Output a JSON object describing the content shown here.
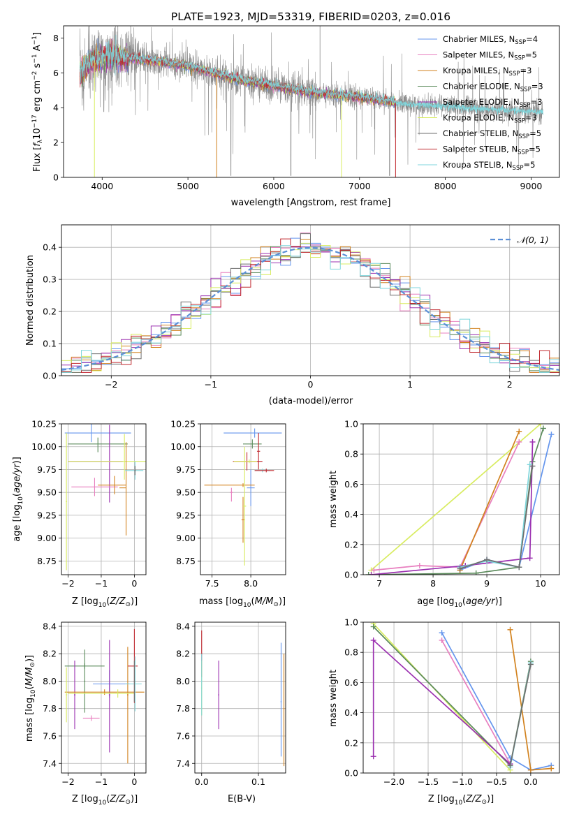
{
  "title": "PLATE=1923, MJD=53319, FIBERID=0203, z=0.016",
  "legend_models": [
    {
      "label": "Chabrier MILES, N",
      "sub": "SSP",
      "suffix": "=4",
      "color": "#6495ed"
    },
    {
      "label": "Salpeter MILES, N",
      "sub": "SSP",
      "suffix": "=5",
      "color": "#e87fbf"
    },
    {
      "label": "Kroupa MILES, N",
      "sub": "SSP",
      "suffix": "=3",
      "color": "#d2821e"
    },
    {
      "label": "Chabrier ELODIE, N",
      "sub": "SSP",
      "suffix": "=3",
      "color": "#5a8a5a"
    },
    {
      "label": "Salpeter ELODIE, N",
      "sub": "SSP",
      "suffix": "=3",
      "color": "#9b30b0"
    },
    {
      "label": "Kroupa ELODIE, N",
      "sub": "SSP",
      "suffix": "=3",
      "color": "#d8ec60"
    },
    {
      "label": "Chabrier STELIB, N",
      "sub": "SSP",
      "suffix": "=5",
      "color": "#6e6e6e"
    },
    {
      "label": "Salpeter STELIB, N",
      "sub": "SSP",
      "suffix": "=5",
      "color": "#c0282e"
    },
    {
      "label": "Kroupa STELIB, N",
      "sub": "SSP",
      "suffix": "=5",
      "color": "#7fd6dc"
    }
  ],
  "normal_label": "𝒩(0, 1)",
  "chart_data": [
    {
      "id": "spectrum",
      "type": "line",
      "xlabel": "wavelength [Angstrom, rest frame]",
      "ylabel": "Flux [f_λ 10^-17 erg cm^-2 s^-1 A^-1]",
      "xlim": [
        3550,
        9330
      ],
      "ylim": [
        0,
        8.7
      ],
      "xticks": [
        4000,
        5000,
        6000,
        7000,
        8000,
        9000
      ],
      "yticks": [
        0,
        2,
        4,
        6,
        8
      ],
      "data_color": "#8c8c8c",
      "continuum": {
        "x": [
          3750,
          3850,
          4000,
          4200,
          4500,
          4800,
          5000,
          5300,
          5600,
          6000,
          6300,
          6600,
          7000,
          7300,
          7450,
          7600,
          8000,
          8400,
          8800,
          9000
        ],
        "y": [
          6.0,
          6.6,
          6.9,
          6.9,
          6.75,
          6.55,
          6.4,
          6.0,
          5.6,
          5.25,
          5.0,
          4.8,
          4.6,
          4.4,
          4.25,
          4.2,
          4.1,
          3.95,
          3.85,
          3.75
        ]
      },
      "model_xrange": [
        3740,
        7420
      ],
      "data_xrange": [
        3740,
        9140
      ]
    },
    {
      "id": "residuals",
      "type": "histogram",
      "xlabel": "(data-model)/error",
      "ylabel": "Normed distribution",
      "xlim": [
        -2.5,
        2.5
      ],
      "ylim": [
        0,
        0.47
      ],
      "xticks": [
        -2,
        -1,
        0,
        1,
        2
      ],
      "yticks": [
        0.0,
        0.1,
        0.2,
        0.3,
        0.4
      ],
      "bin_width": 0.1,
      "gaussian": {
        "mu": 0,
        "sigma": 1,
        "color": "#5b8fd6"
      }
    },
    {
      "id": "age_vs_Z",
      "type": "errorbar",
      "xlabel": "Z [log10(Z/Z⊙)]",
      "ylabel": "age  [log10(age/yr)]",
      "xlim": [
        -2.2,
        0.35
      ],
      "ylim": [
        8.6,
        10.25
      ],
      "xticks": [
        -2,
        -1,
        0
      ],
      "yticks": [
        8.75,
        9.0,
        9.25,
        9.5,
        9.75,
        10.0,
        10.25
      ],
      "points": [
        {
          "x": -1.3,
          "xerr": [
            0.8,
            1.2
          ],
          "y": 10.15,
          "yerr": [
            0.1,
            0.1
          ],
          "c": "#6495ed"
        },
        {
          "x": -1.1,
          "xerr": [
            0.9,
            0.9
          ],
          "y": 10.03,
          "yerr": [
            0.09,
            0.07
          ],
          "c": "#5a8a5a"
        },
        {
          "x": -0.75,
          "xerr": [
            1.25,
            0.4
          ],
          "y": 9.84,
          "yerr": [
            0.45,
            0.4
          ],
          "c": "#9b30b0"
        },
        {
          "x": -1.2,
          "xerr": [
            0.7,
            0.7
          ],
          "y": 9.56,
          "yerr": [
            0.1,
            0.1
          ],
          "c": "#e87fbf"
        },
        {
          "x": -0.6,
          "xerr": [
            0.5,
            0.35
          ],
          "y": 9.58,
          "yerr": [
            0.1,
            0.1
          ],
          "c": "#d2821e"
        },
        {
          "x": -0.3,
          "xerr": [
            1.7,
            0.7
          ],
          "y": 9.84,
          "yerr": [
            0.2,
            0.3
          ],
          "c": "#d8ec60"
        },
        {
          "x": -0.25,
          "xerr": [
            0.2,
            0.0
          ],
          "y": 9.55,
          "yerr": [
            0.52,
            0.5
          ],
          "c": "#d2821e"
        },
        {
          "x": 0.02,
          "xerr": [
            0.3,
            0.25
          ],
          "y": 9.74,
          "yerr": [
            0.1,
            0.1
          ],
          "c": "#7fd6dc"
        },
        {
          "x": 0.02,
          "xerr": [
            0.02,
            0.02
          ],
          "y": 9.74,
          "yerr": [
            0.05,
            0.05
          ],
          "c": "#6e6e6e"
        },
        {
          "x": -2.05,
          "xerr": [
            0.02,
            0.02
          ],
          "y": 9.4,
          "yerr": [
            0.75,
            0.75
          ],
          "c": "#d8ec60"
        }
      ]
    },
    {
      "id": "age_vs_mass",
      "type": "errorbar",
      "xlabel": "mass [log10(M/M⊙)]",
      "ylabel": "",
      "xlim": [
        7.35,
        8.45
      ],
      "ylim": [
        8.6,
        10.25
      ],
      "xticks": [
        7.5,
        8.0
      ],
      "yticks": [
        8.75,
        9.0,
        9.25,
        9.5,
        9.75,
        10.0,
        10.25
      ],
      "points": [
        {
          "x": 8.05,
          "xerr": [
            0.4,
            0.35
          ],
          "y": 10.15,
          "yerr": [
            0.05,
            0.05
          ],
          "c": "#6495ed"
        },
        {
          "x": 8.0,
          "xerr": [
            0.05,
            0.05
          ],
          "y": 9.55,
          "yerr": [
            0.2,
            0.2
          ],
          "c": "#6495ed"
        },
        {
          "x": 8.02,
          "xerr": [
            0.12,
            0.12
          ],
          "y": 10.03,
          "yerr": [
            0.05,
            0.05
          ],
          "c": "#5a8a5a"
        },
        {
          "x": 8.1,
          "xerr": [
            0.02,
            0.02
          ],
          "y": 9.95,
          "yerr": [
            0.2,
            0.2
          ],
          "c": "#c0282e"
        },
        {
          "x": 7.95,
          "xerr": [
            0.18,
            0.2
          ],
          "y": 9.84,
          "yerr": [
            0.1,
            0.1
          ],
          "c": "#c0282e"
        },
        {
          "x": 7.98,
          "xerr": [
            0.2,
            0.1
          ],
          "y": 9.84,
          "yerr": [
            0.02,
            0.02
          ],
          "c": "#d8ec60"
        },
        {
          "x": 7.9,
          "xerr": [
            0.5,
            0.15
          ],
          "y": 9.58,
          "yerr": [
            0.02,
            0.02
          ],
          "c": "#d2821e"
        },
        {
          "x": 7.9,
          "xerr": [
            0.02,
            0.02
          ],
          "y": 9.2,
          "yerr": [
            0.25,
            0.25
          ],
          "c": "#d2821e"
        },
        {
          "x": 7.75,
          "xerr": [
            0.02,
            0.02
          ],
          "y": 9.5,
          "yerr": [
            0.1,
            0.05
          ],
          "c": "#e87fbf"
        },
        {
          "x": 7.92,
          "xerr": [
            0.02,
            0.02
          ],
          "y": 9.35,
          "yerr": [
            0.65,
            0.65
          ],
          "c": "#d8ec60"
        },
        {
          "x": 8.15,
          "xerr": [
            0.1,
            0.1
          ],
          "y": 9.74,
          "yerr": [
            0.02,
            0.02
          ],
          "c": "#7fd6dc"
        },
        {
          "x": 8.2,
          "xerr": [
            0.15,
            0.1
          ],
          "y": 9.74,
          "yerr": [
            0.02,
            0.02
          ],
          "c": "#c0282e"
        }
      ]
    },
    {
      "id": "weight_vs_age",
      "type": "line",
      "xlabel": "age  [log10(age/yr)]",
      "ylabel": "mass weight",
      "xlim": [
        6.7,
        10.35
      ],
      "ylim": [
        0,
        1.0
      ],
      "xticks": [
        7,
        8,
        9,
        10
      ],
      "yticks": [
        0.0,
        0.2,
        0.4,
        0.6,
        0.8,
        1.0
      ],
      "series": [
        {
          "c": "#d8ec60",
          "x": [
            6.85,
            10.0
          ],
          "y": [
            0.03,
            1.0
          ]
        },
        {
          "c": "#6495ed",
          "x": [
            8.5,
            9.0,
            9.6,
            10.2
          ],
          "y": [
            0.03,
            0.1,
            0.05,
            0.93
          ]
        },
        {
          "c": "#e87fbf",
          "x": [
            6.9,
            7.75,
            8.5,
            9.6
          ],
          "y": [
            0.03,
            0.06,
            0.05,
            0.88
          ]
        },
        {
          "c": "#d2821e",
          "x": [
            8.5,
            9.6
          ],
          "y": [
            0.03,
            0.95
          ]
        },
        {
          "c": "#5a8a5a",
          "x": [
            6.8,
            8.8,
            9.6,
            9.85,
            10.05
          ],
          "y": [
            0.0,
            0.01,
            0.05,
            0.75,
            0.97
          ]
        },
        {
          "c": "#9b30b0",
          "x": [
            6.85,
            8.6,
            9.8,
            9.85
          ],
          "y": [
            0.0,
            0.06,
            0.11,
            0.88
          ]
        },
        {
          "c": "#7fd6dc",
          "x": [
            8.5,
            9.0,
            9.6,
            9.8
          ],
          "y": [
            0.05,
            0.09,
            0.05,
            0.73
          ]
        },
        {
          "c": "#6e6e6e",
          "x": [
            8.5,
            9.0,
            9.6,
            9.85
          ],
          "y": [
            0.04,
            0.1,
            0.05,
            0.72
          ]
        }
      ]
    },
    {
      "id": "mass_vs_Z",
      "type": "errorbar",
      "xlabel": "Z [log10(Z/Z⊙)]",
      "ylabel": "mass [log10(M/M⊙)]",
      "xlim": [
        -2.2,
        0.35
      ],
      "ylim": [
        7.33,
        8.43
      ],
      "xticks": [
        -2,
        -1,
        0
      ],
      "yticks": [
        7.4,
        7.6,
        7.8,
        8.0,
        8.2,
        8.4
      ],
      "points": [
        {
          "x": -1.5,
          "xerr": [
            0.6,
            0.6
          ],
          "y": 8.11,
          "yerr": [
            0.02,
            0.02
          ],
          "c": "#5a8a5a"
        },
        {
          "x": -1.5,
          "xerr": [
            0.02,
            0.02
          ],
          "y": 8.0,
          "yerr": [
            0.23,
            0.23
          ],
          "c": "#5a8a5a"
        },
        {
          "x": -1.8,
          "xerr": [
            0.02,
            0.02
          ],
          "y": 7.9,
          "yerr": [
            0.25,
            0.25
          ],
          "c": "#9b30b0"
        },
        {
          "x": -1.3,
          "xerr": [
            0.25,
            0.25
          ],
          "y": 7.73,
          "yerr": [
            0.02,
            0.02
          ],
          "c": "#e87fbf"
        },
        {
          "x": -0.75,
          "xerr": [
            0.5,
            0.6
          ],
          "y": 7.98,
          "yerr": [
            0.1,
            0.1
          ],
          "c": "#6495ed"
        },
        {
          "x": -0.75,
          "xerr": [
            0.02,
            0.02
          ],
          "y": 7.9,
          "yerr": [
            0.42,
            0.4
          ],
          "c": "#9b30b0"
        },
        {
          "x": -0.2,
          "xerr": [
            0.02,
            0.02
          ],
          "y": 7.9,
          "yerr": [
            0.5,
            0.35
          ],
          "c": "#d2821e"
        },
        {
          "x": -0.9,
          "xerr": [
            1.2,
            1.2
          ],
          "y": 7.92,
          "yerr": [
            0.02,
            0.02
          ],
          "c": "#d2821e"
        },
        {
          "x": -0.5,
          "xerr": [
            1.5,
            0.5
          ],
          "y": 7.91,
          "yerr": [
            0.03,
            0.03
          ],
          "c": "#d8ec60"
        },
        {
          "x": 0.0,
          "xerr": [
            0.2,
            0.1
          ],
          "y": 8.11,
          "yerr": [
            0.27,
            0.27
          ],
          "c": "#c0282e"
        },
        {
          "x": 0.02,
          "xerr": [
            0.3,
            0.2
          ],
          "y": 7.98,
          "yerr": [
            0.2,
            0.2
          ],
          "c": "#7fd6dc"
        },
        {
          "x": 0.0,
          "xerr": [
            0.02,
            0.02
          ],
          "y": 8.0,
          "yerr": [
            0.15,
            0.15
          ],
          "c": "#6e6e6e"
        },
        {
          "x": -2.05,
          "xerr": [
            0.02,
            0.02
          ],
          "y": 7.9,
          "yerr": [
            0.2,
            0.2
          ],
          "c": "#d8ec60"
        }
      ]
    },
    {
      "id": "mass_vs_ebv",
      "type": "errorbar",
      "xlabel": "E(B-V)",
      "ylabel": "",
      "xlim": [
        -0.012,
        0.148
      ],
      "ylim": [
        7.33,
        8.43
      ],
      "xticks": [
        0.0,
        0.1
      ],
      "yticks": [
        7.4,
        7.6,
        7.8,
        8.0,
        8.2,
        8.4
      ],
      "points": [
        {
          "x": 0.0,
          "xerr": [
            0.001,
            0.001
          ],
          "y": 8.2,
          "yerr": [
            0.17,
            0.17
          ],
          "c": "#c0282e"
        },
        {
          "x": 0.0,
          "xerr": [
            0.001,
            0.001
          ],
          "y": 7.95,
          "yerr": [
            0.2,
            0.2
          ],
          "c": "#d8ec60"
        },
        {
          "x": 0.0,
          "xerr": [
            0.001,
            0.001
          ],
          "y": 8.0,
          "yerr": [
            0.25,
            0.2
          ],
          "c": "#7fd6dc"
        },
        {
          "x": 0.03,
          "xerr": [
            0.001,
            0.001
          ],
          "y": 7.9,
          "yerr": [
            0.25,
            0.25
          ],
          "c": "#9b30b0"
        },
        {
          "x": 0.14,
          "xerr": [
            0.001,
            0.001
          ],
          "y": 7.85,
          "yerr": [
            0.4,
            0.43
          ],
          "c": "#6495ed"
        },
        {
          "x": 0.145,
          "xerr": [
            0.001,
            0.001
          ],
          "y": 7.8,
          "yerr": [
            0.42,
            0.4
          ],
          "c": "#d2821e"
        }
      ]
    },
    {
      "id": "weight_vs_Z",
      "type": "line",
      "xlabel": "Z [log10(Z/Z⊙)]",
      "ylabel": "mass weight",
      "xlim": [
        -2.45,
        0.42
      ],
      "ylim": [
        0,
        1.0
      ],
      "xticks": [
        -2.0,
        -1.5,
        -1.0,
        -0.5,
        0.0
      ],
      "yticks": [
        0.0,
        0.2,
        0.4,
        0.6,
        0.8,
        1.0
      ],
      "series": [
        {
          "c": "#d8ec60",
          "x": [
            -2.3,
            -0.3
          ],
          "y": [
            0.99,
            0.02
          ]
        },
        {
          "c": "#6495ed",
          "x": [
            -1.3,
            -0.3,
            0.0,
            0.3
          ],
          "y": [
            0.93,
            0.1,
            0.02,
            0.05
          ]
        },
        {
          "c": "#e87fbf",
          "x": [
            -1.3,
            -0.3
          ],
          "y": [
            0.88,
            0.06
          ]
        },
        {
          "c": "#d2821e",
          "x": [
            -0.3,
            0.0,
            0.3
          ],
          "y": [
            0.95,
            0.02,
            0.03
          ]
        },
        {
          "c": "#5a8a5a",
          "x": [
            -2.3,
            -0.3,
            0.0
          ],
          "y": [
            0.97,
            0.05,
            0.74
          ]
        },
        {
          "c": "#9b30b0",
          "x": [
            -2.3,
            -2.3,
            -0.3
          ],
          "y": [
            0.11,
            0.88,
            0.06
          ]
        },
        {
          "c": "#7fd6dc",
          "x": [
            -0.3,
            0.0
          ],
          "y": [
            0.04,
            0.73
          ]
        },
        {
          "c": "#6e6e6e",
          "x": [
            -0.3,
            0.0
          ],
          "y": [
            0.05,
            0.72
          ]
        }
      ]
    }
  ]
}
